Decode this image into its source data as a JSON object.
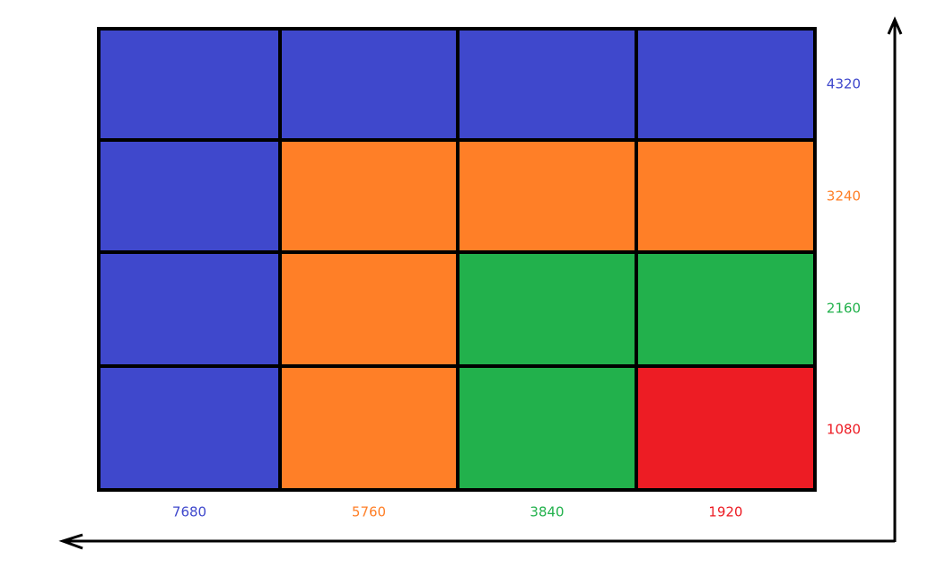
{
  "grid": {
    "columns": [
      {
        "label": "7680",
        "color": "#3f48cc"
      },
      {
        "label": "5760",
        "color": "#ff7f27"
      },
      {
        "label": "3840",
        "color": "#22b14c"
      },
      {
        "label": "1920",
        "color": "#ed1c24"
      }
    ],
    "rows": [
      {
        "label": "4320",
        "color": "#3f48cc"
      },
      {
        "label": "3240",
        "color": "#ff7f27"
      },
      {
        "label": "2160",
        "color": "#22b14c"
      },
      {
        "label": "1080",
        "color": "#ed1c24"
      }
    ],
    "cells": [
      [
        "#3f48cc",
        "#3f48cc",
        "#3f48cc",
        "#3f48cc"
      ],
      [
        "#3f48cc",
        "#ff7f27",
        "#ff7f27",
        "#ff7f27"
      ],
      [
        "#3f48cc",
        "#ff7f27",
        "#22b14c",
        "#22b14c"
      ],
      [
        "#3f48cc",
        "#ff7f27",
        "#22b14c",
        "#ed1c24"
      ]
    ]
  }
}
